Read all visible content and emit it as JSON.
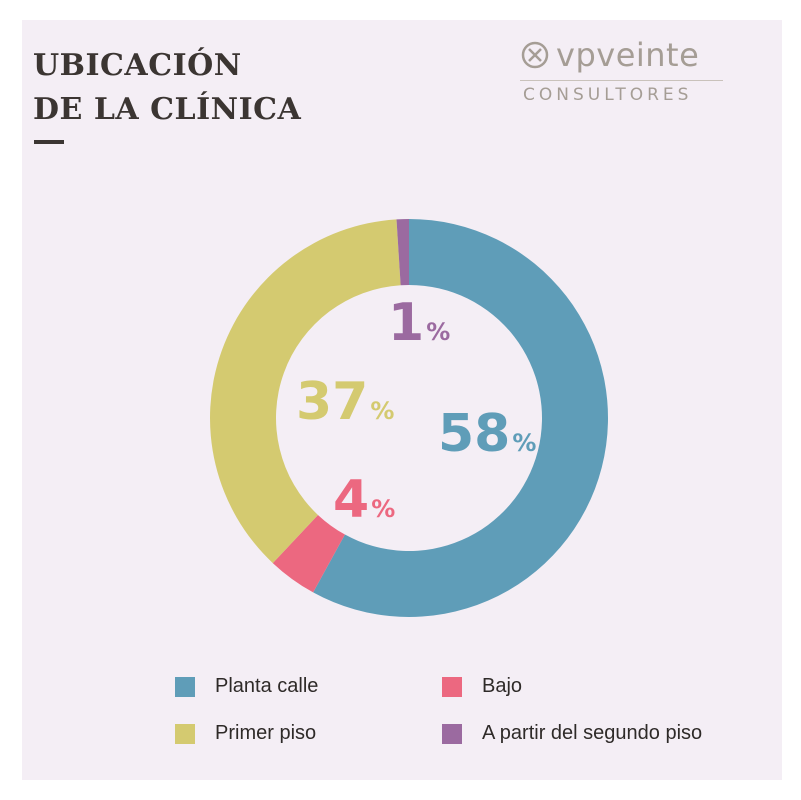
{
  "title": {
    "line1": "UBICACIÓN",
    "line2": "DE LA CLÍNICA"
  },
  "logo": {
    "icon": "circle-x-emblem-icon",
    "word": "vpveinte",
    "sub": "CONSULTORES",
    "color": "#a59d95"
  },
  "chart_data": {
    "type": "pie",
    "donut": true,
    "categories": [
      "Planta calle",
      "Bajo",
      "Primer piso",
      "A partir del segundo piso"
    ],
    "values": [
      58,
      4,
      37,
      1
    ],
    "labels": [
      "58",
      "4",
      "37",
      "1"
    ],
    "unit": "%",
    "colors": [
      "#5f9db8",
      "#ec6880",
      "#d4ca70",
      "#9b6aa0"
    ],
    "legend_position": "bottom"
  },
  "legend": [
    {
      "label": "Planta calle",
      "color": "#5f9db8"
    },
    {
      "label": "Bajo",
      "color": "#ec6880"
    },
    {
      "label": "Primer piso",
      "color": "#d4ca70"
    },
    {
      "label": "A partir del segundo piso",
      "color": "#9b6aa0"
    }
  ]
}
